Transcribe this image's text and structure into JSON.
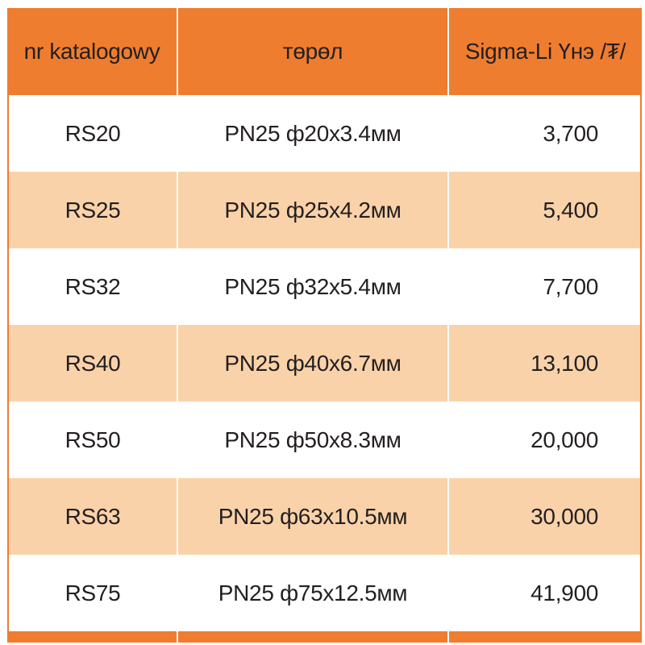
{
  "table": {
    "columns": [
      {
        "label": "nr katalogowy"
      },
      {
        "label": "төрөл"
      },
      {
        "label": "Sigma-Li Үнэ /₮/"
      }
    ],
    "rows": [
      {
        "code": "RS20",
        "type": "PN25 ф20x3.4мм",
        "price": "3,700"
      },
      {
        "code": "RS25",
        "type": "PN25 ф25x4.2мм",
        "price": "5,400"
      },
      {
        "code": "RS32",
        "type": "PN25 ф32x5.4мм",
        "price": "7,700"
      },
      {
        "code": "RS40",
        "type": "PN25 ф40x6.7мм",
        "price": "13,100"
      },
      {
        "code": "RS50",
        "type": "PN25 ф50x8.3мм",
        "price": "20,000"
      },
      {
        "code": "RS63",
        "type": "PN25 ф63x10.5мм",
        "price": "30,000"
      },
      {
        "code": "RS75",
        "type": "PN25 ф75x12.5мм",
        "price": "41,900"
      }
    ]
  },
  "colors": {
    "header_bg": "#ef7d30",
    "row_alt_bg": "#fad2a9",
    "table_border": "#ef7d30",
    "text": "#231f20",
    "divider": "#ffffff"
  }
}
